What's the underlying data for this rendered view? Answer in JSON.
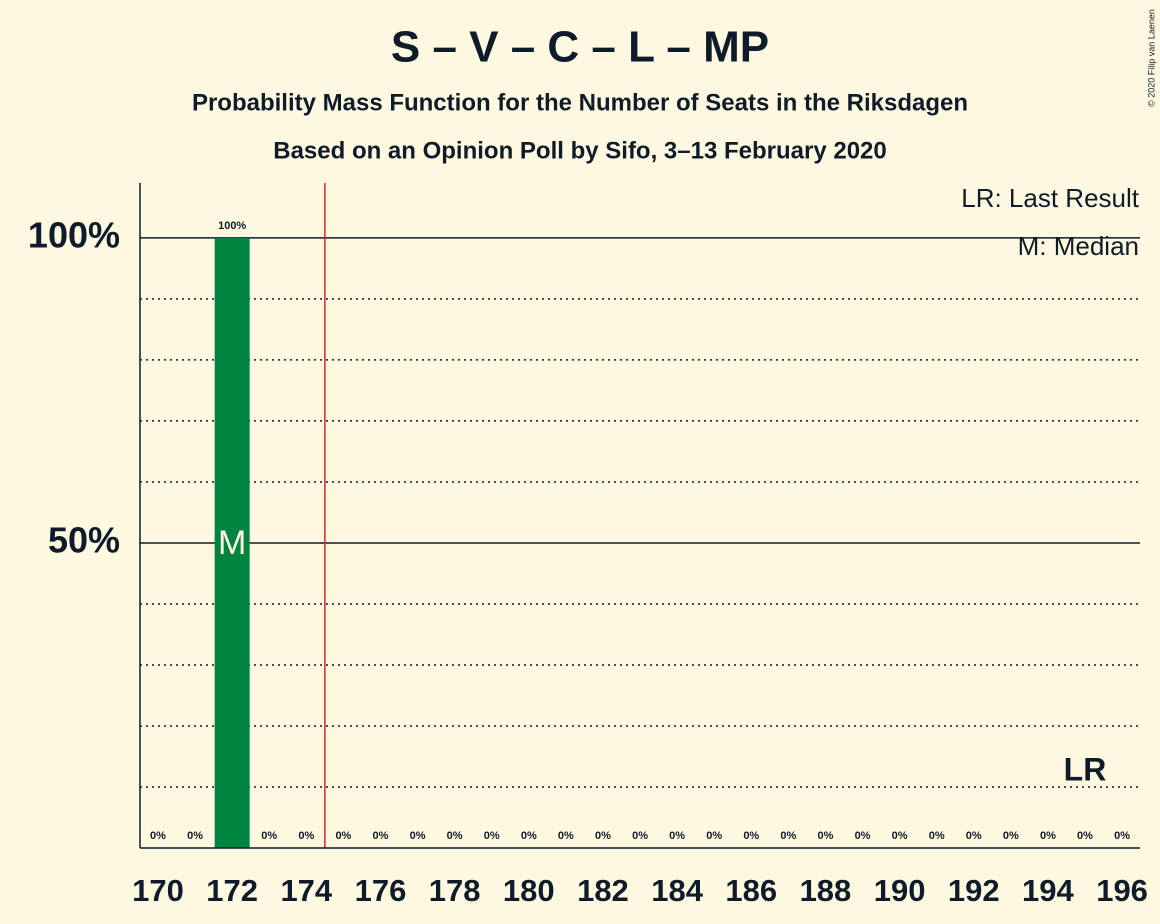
{
  "chart_data": {
    "type": "bar",
    "title": "S – V – C – L – MP",
    "subtitle": "Probability Mass Function for the Number of Seats in the Riksdagen",
    "subtitle2": "Based on an Opinion Poll by Sifo, 3–13 February 2020",
    "credit": "© 2020 Filip van Laenen",
    "categories": [
      "170",
      null,
      "172",
      null,
      "174",
      null,
      "176",
      null,
      "178",
      null,
      "180",
      null,
      "182",
      null,
      "184",
      null,
      "186",
      null,
      "188",
      null,
      "190",
      null,
      "192",
      null,
      "194",
      null,
      "196"
    ],
    "values": [
      0,
      0,
      100,
      0,
      0,
      0,
      0,
      0,
      0,
      0,
      0,
      0,
      0,
      0,
      0,
      0,
      0,
      0,
      0,
      0,
      0,
      0,
      0,
      0,
      0,
      0,
      0
    ],
    "value_labels": [
      "0%",
      "0%",
      "100%",
      "0%",
      "0%",
      "0%",
      "0%",
      "0%",
      "0%",
      "0%",
      "0%",
      "0%",
      "0%",
      "0%",
      "0%",
      "0%",
      "0%",
      "0%",
      "0%",
      "0%",
      "0%",
      "0%",
      "0%",
      "0%",
      "0%",
      "0%",
      "0%"
    ],
    "color": "#008540",
    "ylim": [
      0,
      109
    ],
    "yticks": [
      {
        "value": 50,
        "label": "50%"
      },
      {
        "value": 100,
        "label": "100%"
      }
    ],
    "minor_yticks": [
      10,
      20,
      30,
      40,
      60,
      70,
      80,
      90
    ],
    "grid": true,
    "majority_index": 5,
    "majority_color": "#e0202a",
    "median_index": 2,
    "median_label": "M",
    "last_result_index": 25,
    "last_result_label": "LR",
    "legend": [
      "LR: Last Result",
      "M: Median"
    ]
  }
}
